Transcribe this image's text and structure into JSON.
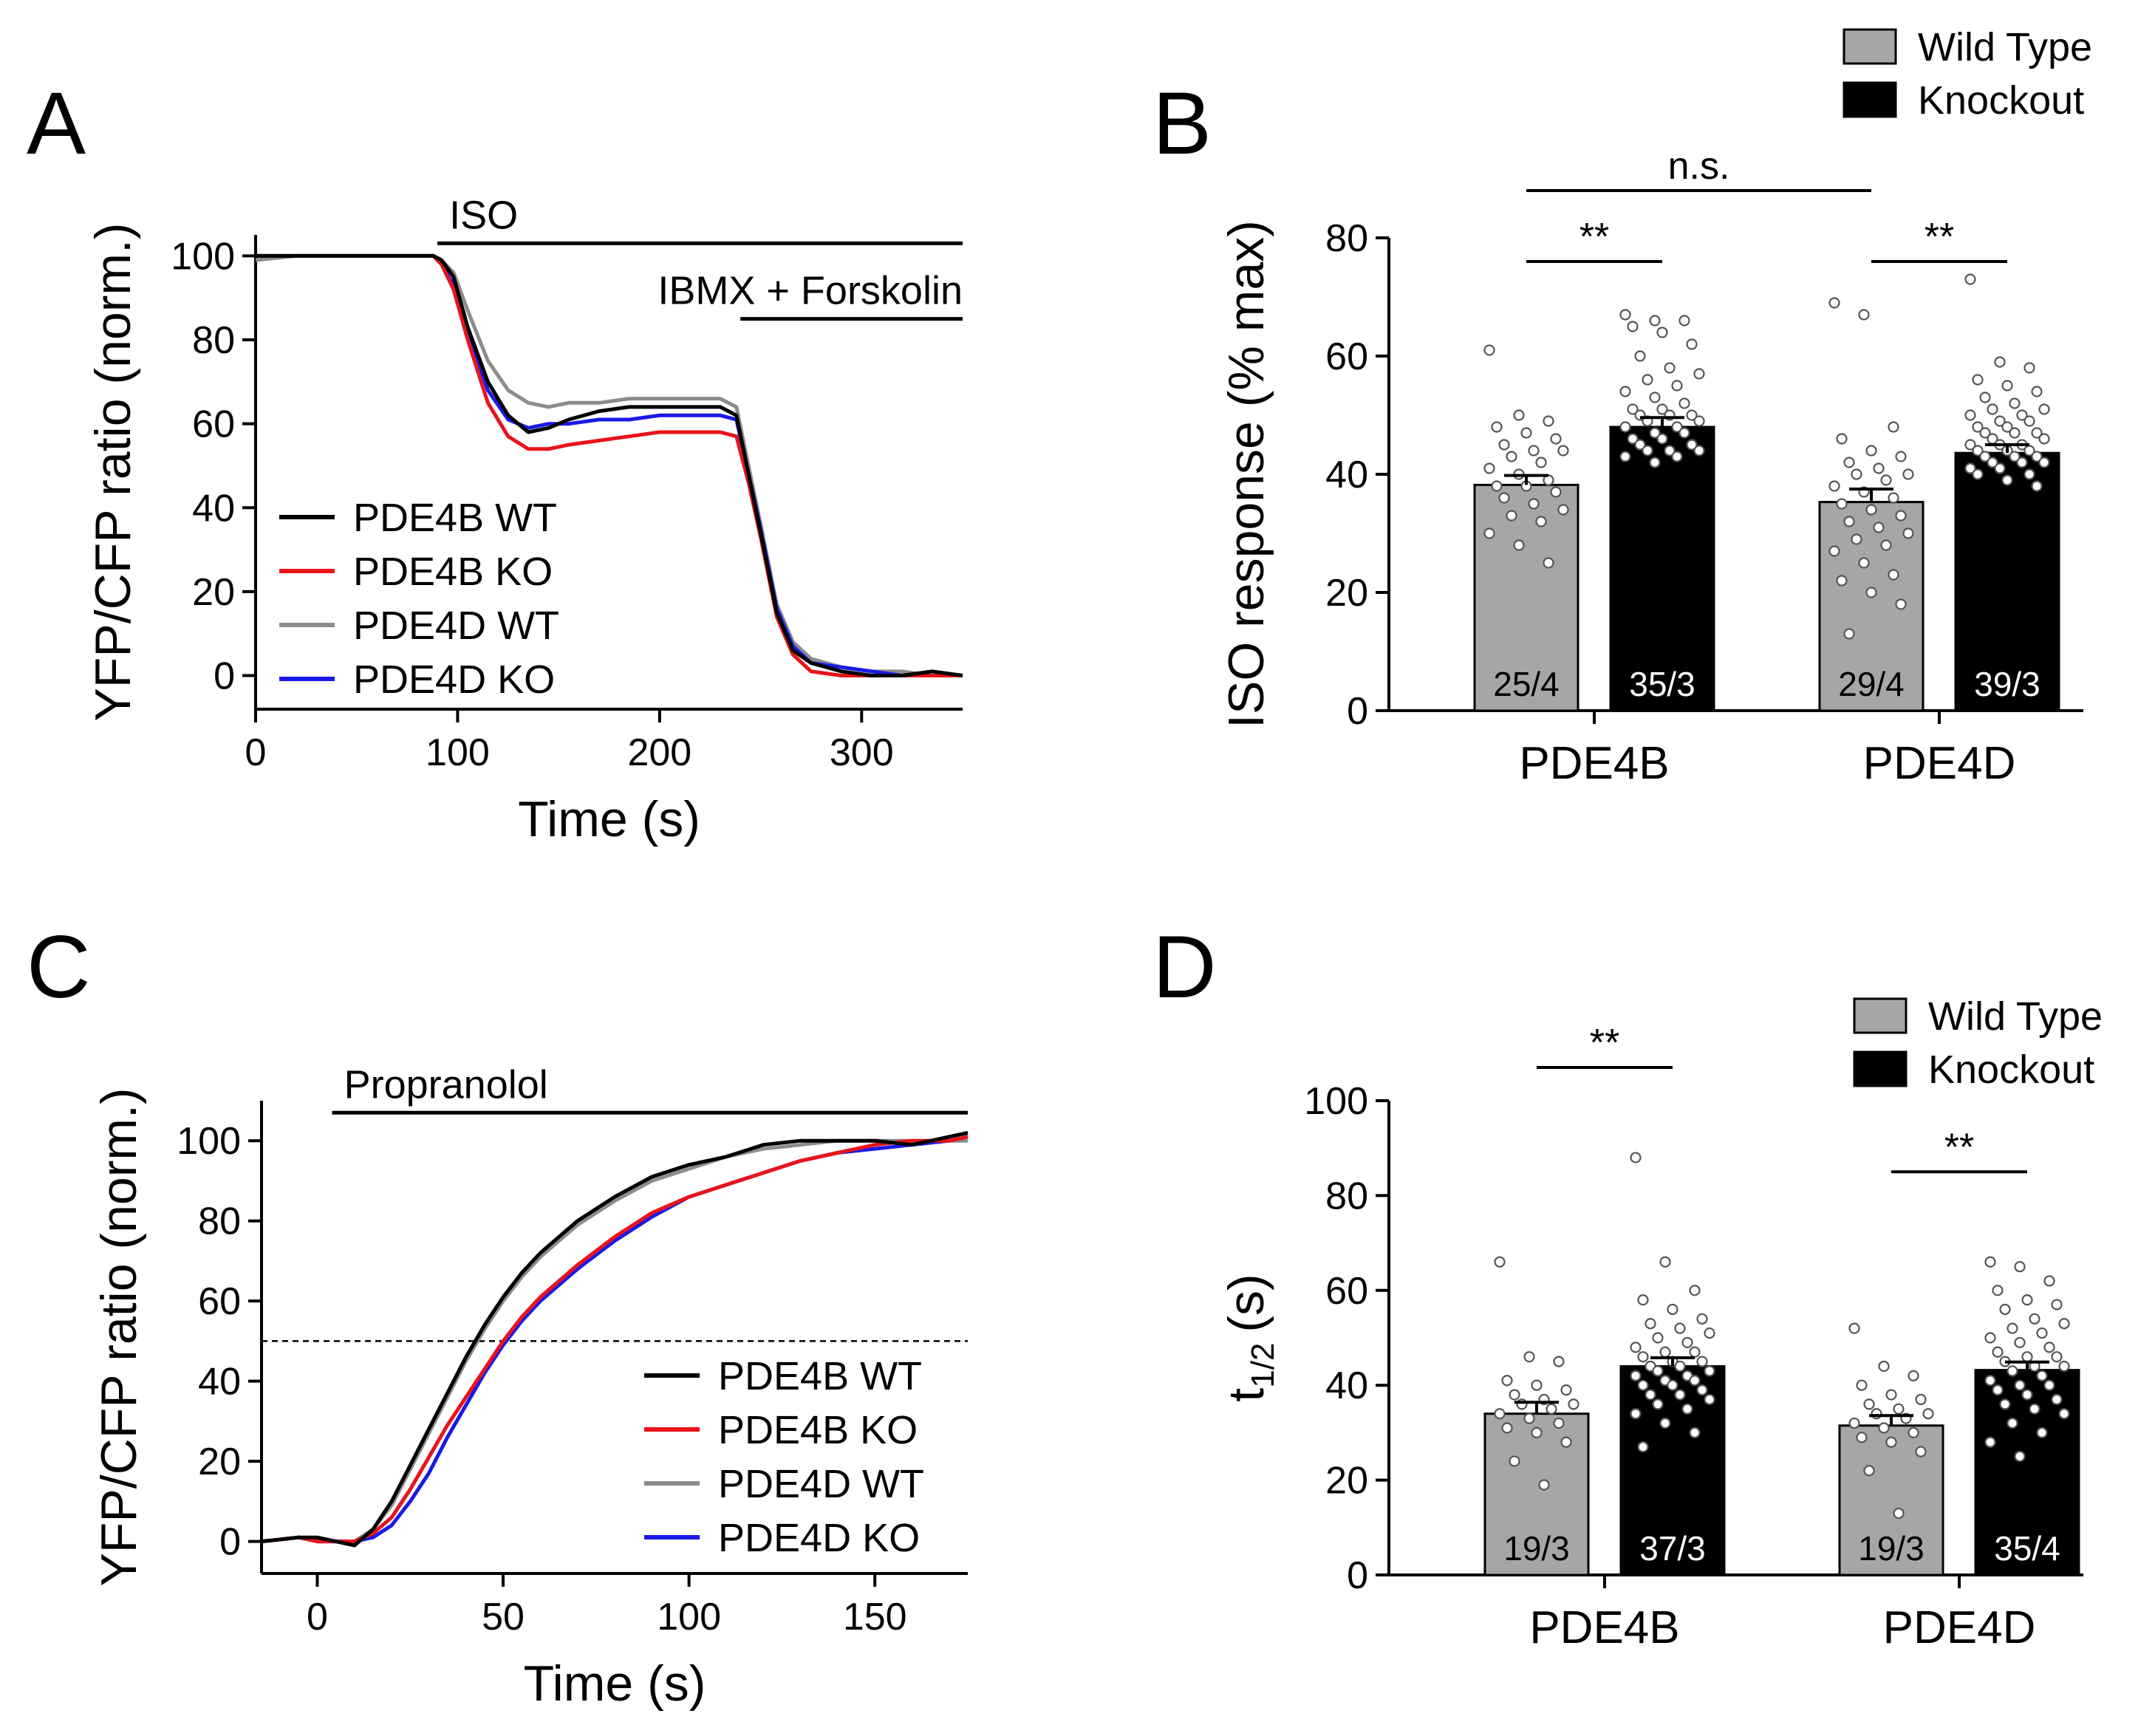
{
  "colors": {
    "pde4b_wt": "#000000",
    "pde4b_ko": "#e8141b",
    "pde4d_wt": "#8c8c8c",
    "pde4d_ko": "#1a1ae8",
    "bar_wt": "#a6a6a6",
    "bar_ko": "#000000"
  },
  "chart_data": [
    {
      "type": "line",
      "panel": "A",
      "ylabel": "YFP/CFP ratio (norm.)",
      "xlabel": "Time (s)",
      "xlim": [
        0,
        350
      ],
      "ylim": [
        -8,
        105
      ],
      "xticks": [
        "0",
        "100",
        "200",
        "300"
      ],
      "xtick_values": [
        0,
        100,
        200,
        300
      ],
      "yticks": [
        "0",
        "20",
        "40",
        "60",
        "80",
        "100"
      ],
      "ytick_values": [
        0,
        20,
        40,
        60,
        80,
        100
      ],
      "annotations": [
        {
          "label": "ISO",
          "x_start": 90,
          "x_end": 350,
          "y": 103
        },
        {
          "label": "IBMX + Forskolin",
          "x_start": 240,
          "x_end": 350,
          "y": 85
        }
      ],
      "series": [
        {
          "name": "PDE4B WT",
          "x": [
            0,
            20,
            40,
            60,
            80,
            88,
            92,
            98,
            105,
            115,
            125,
            135,
            145,
            155,
            170,
            185,
            200,
            215,
            230,
            238,
            244,
            250,
            258,
            266,
            275,
            290,
            305,
            320,
            335,
            350
          ],
          "values": [
            100,
            100,
            100,
            100,
            100,
            100,
            99,
            95,
            83,
            70,
            62,
            58,
            59,
            61,
            63,
            64,
            64,
            64,
            64,
            62,
            48,
            34,
            15,
            6,
            3,
            1,
            0,
            0,
            1,
            0
          ]
        },
        {
          "name": "PDE4B KO",
          "x": [
            0,
            20,
            40,
            60,
            80,
            88,
            92,
            98,
            105,
            115,
            125,
            135,
            145,
            155,
            170,
            185,
            200,
            215,
            230,
            238,
            244,
            250,
            258,
            266,
            275,
            290,
            305,
            320,
            335,
            350
          ],
          "values": [
            100,
            100,
            100,
            100,
            100,
            100,
            98,
            92,
            80,
            65,
            57,
            54,
            54,
            55,
            56,
            57,
            58,
            58,
            58,
            57,
            46,
            33,
            14,
            5,
            1,
            0,
            0,
            0,
            0,
            0
          ]
        },
        {
          "name": "PDE4D WT",
          "x": [
            0,
            20,
            40,
            60,
            80,
            88,
            92,
            98,
            105,
            115,
            125,
            135,
            145,
            155,
            170,
            185,
            200,
            215,
            230,
            238,
            244,
            250,
            258,
            266,
            275,
            290,
            305,
            320,
            335,
            350
          ],
          "values": [
            99,
            100,
            100,
            100,
            100,
            100,
            99,
            96,
            87,
            75,
            68,
            65,
            64,
            65,
            65,
            66,
            66,
            66,
            66,
            64,
            50,
            36,
            17,
            8,
            4,
            2,
            1,
            1,
            0,
            0
          ]
        },
        {
          "name": "PDE4D KO",
          "x": [
            0,
            20,
            40,
            60,
            80,
            88,
            92,
            98,
            105,
            115,
            125,
            135,
            145,
            155,
            170,
            185,
            200,
            215,
            230,
            238,
            244,
            250,
            258,
            266,
            275,
            290,
            305,
            320,
            335,
            350
          ],
          "values": [
            100,
            100,
            100,
            100,
            100,
            100,
            98,
            93,
            82,
            68,
            61,
            59,
            60,
            60,
            61,
            61,
            62,
            62,
            62,
            61,
            48,
            35,
            16,
            7,
            3,
            2,
            1,
            0,
            0,
            0
          ]
        }
      ]
    },
    {
      "type": "bar",
      "panel": "B",
      "ylabel": "ISO response (% max)",
      "categories": [
        "PDE4B",
        "PDE4D"
      ],
      "ylim": [
        0,
        80
      ],
      "yticks": [
        "0",
        "20",
        "40",
        "60",
        "80"
      ],
      "ytick_values": [
        0,
        20,
        40,
        60,
        80
      ],
      "legend": {
        "position": "top-right",
        "entries": [
          "Wild Type",
          "Knockout"
        ]
      },
      "series": [
        {
          "name": "Wild Type",
          "values": [
            38.2,
            35.3
          ],
          "sem": [
            1.6,
            2.2
          ],
          "n_labels": [
            "25/4",
            "29/4"
          ]
        },
        {
          "name": "Knockout",
          "values": [
            48.0,
            43.6
          ],
          "sem": [
            1.6,
            1.4
          ],
          "n_labels": [
            "35/3",
            "39/3"
          ]
        }
      ],
      "points": [
        [
          61,
          50,
          49,
          48,
          47,
          46,
          45,
          44,
          44,
          43,
          42,
          41,
          40,
          39,
          38,
          38,
          37,
          36,
          35,
          34,
          33,
          32,
          30,
          28,
          25
        ],
        [
          67,
          66,
          66,
          65,
          64,
          62,
          60,
          58,
          57,
          56,
          55,
          54,
          53,
          52,
          51,
          51,
          50,
          50,
          50,
          49,
          49,
          48,
          48,
          47,
          47,
          46,
          46,
          45,
          45,
          44,
          44,
          44,
          43,
          43,
          42
        ],
        [
          69,
          67,
          48,
          46,
          44,
          43,
          42,
          41,
          40,
          40,
          39,
          38,
          37,
          36,
          35,
          34,
          33,
          32,
          31,
          30,
          29,
          28,
          27,
          25,
          23,
          22,
          20,
          18,
          13
        ],
        [
          73,
          59,
          58,
          56,
          55,
          54,
          53,
          52,
          51,
          51,
          50,
          50,
          49,
          49,
          48,
          48,
          47,
          47,
          47,
          46,
          46,
          45,
          45,
          45,
          44,
          44,
          44,
          43,
          43,
          43,
          42,
          42,
          42,
          41,
          41,
          40,
          40,
          39,
          38
        ]
      ],
      "significance": [
        {
          "label": "**",
          "between": "PDE4B WT vs KO",
          "y": 76
        },
        {
          "label": "**",
          "between": "PDE4D WT vs KO",
          "y": 76
        },
        {
          "label": "n.s.",
          "between": "PDE4B WT vs PDE4D WT",
          "y": 88
        }
      ]
    },
    {
      "type": "line",
      "panel": "C",
      "ylabel": "YFP/CFP ratio (norm.)",
      "xlabel": "Time (s)",
      "xlim": [
        -15,
        175
      ],
      "ylim": [
        -8,
        110
      ],
      "xticks": [
        "0",
        "50",
        "100",
        "150"
      ],
      "xtick_values": [
        0,
        50,
        100,
        150
      ],
      "yticks": [
        "0",
        "20",
        "40",
        "60",
        "80",
        "100"
      ],
      "ytick_values": [
        0,
        20,
        40,
        60,
        80,
        100
      ],
      "reference_line_y": 50,
      "annotations": [
        {
          "label": "Propranolol",
          "x_start": 4,
          "x_end": 175,
          "y": 107
        }
      ],
      "series": [
        {
          "name": "PDE4B WT",
          "x": [
            -15,
            -5,
            0,
            5,
            10,
            15,
            20,
            25,
            30,
            35,
            40,
            45,
            50,
            55,
            60,
            70,
            80,
            90,
            100,
            110,
            120,
            130,
            140,
            150,
            160,
            170,
            175
          ],
          "values": [
            0,
            1,
            1,
            0,
            -1,
            3,
            10,
            19,
            28,
            37,
            46,
            54,
            61,
            67,
            72,
            80,
            86,
            91,
            94,
            96,
            99,
            100,
            100,
            100,
            99,
            101,
            102
          ]
        },
        {
          "name": "PDE4B KO",
          "x": [
            -15,
            -5,
            0,
            5,
            10,
            15,
            20,
            25,
            30,
            35,
            40,
            45,
            50,
            55,
            60,
            70,
            80,
            90,
            100,
            110,
            120,
            130,
            140,
            150,
            160,
            170,
            175
          ],
          "values": [
            0,
            1,
            0,
            0,
            0,
            2,
            6,
            13,
            21,
            29,
            36,
            43,
            50,
            56,
            61,
            69,
            76,
            82,
            86,
            89,
            92,
            95,
            97,
            99,
            100,
            100,
            101
          ]
        },
        {
          "name": "PDE4D WT",
          "x": [
            -15,
            -5,
            0,
            5,
            10,
            15,
            20,
            25,
            30,
            35,
            40,
            45,
            50,
            55,
            60,
            70,
            80,
            90,
            100,
            110,
            120,
            130,
            140,
            150,
            160,
            170,
            175
          ],
          "values": [
            0,
            1,
            0,
            0,
            0,
            3,
            9,
            18,
            27,
            36,
            45,
            53,
            60,
            66,
            71,
            79,
            85,
            90,
            93,
            96,
            98,
            99,
            100,
            100,
            100,
            100,
            100
          ]
        },
        {
          "name": "PDE4D KO",
          "x": [
            -15,
            -5,
            0,
            5,
            10,
            15,
            20,
            25,
            30,
            35,
            40,
            45,
            50,
            55,
            60,
            70,
            80,
            90,
            100,
            110,
            120,
            130,
            140,
            150,
            160,
            170,
            175
          ],
          "values": [
            0,
            1,
            0,
            0,
            0,
            1,
            4,
            10,
            17,
            26,
            34,
            42,
            49,
            55,
            60,
            68,
            75,
            81,
            86,
            89,
            92,
            95,
            97,
            98,
            99,
            100,
            101
          ]
        }
      ]
    },
    {
      "type": "bar",
      "panel": "D",
      "ylabel": "t 1/2 (s)",
      "ylabel_main": "t",
      "ylabel_sub": "1/2",
      "ylabel_unit": "(s)",
      "categories": [
        "PDE4B",
        "PDE4D"
      ],
      "ylim": [
        0,
        100
      ],
      "yticks": [
        "0",
        "20",
        "40",
        "60",
        "80",
        "100"
      ],
      "ytick_values": [
        0,
        20,
        40,
        60,
        80,
        100
      ],
      "legend": {
        "position": "top-right",
        "entries": [
          "Wild Type",
          "Knockout"
        ]
      },
      "series": [
        {
          "name": "Wild Type",
          "values": [
            34.0,
            31.5
          ],
          "sem": [
            2.4,
            2.1
          ],
          "n_labels": [
            "19/3",
            "19/3"
          ]
        },
        {
          "name": "Knockout",
          "values": [
            44.0,
            43.2
          ],
          "sem": [
            1.8,
            1.7
          ],
          "n_labels": [
            "37/3",
            "35/4"
          ]
        }
      ],
      "points": [
        [
          66,
          46,
          45,
          41,
          40,
          39,
          38,
          37,
          36,
          36,
          35,
          34,
          33,
          32,
          31,
          30,
          28,
          24,
          19
        ],
        [
          88,
          66,
          60,
          58,
          56,
          54,
          53,
          52,
          51,
          50,
          49,
          48,
          47,
          47,
          46,
          45,
          45,
          44,
          44,
          43,
          43,
          42,
          42,
          41,
          41,
          40,
          40,
          39,
          38,
          38,
          37,
          36,
          35,
          34,
          32,
          30,
          27
        ],
        [
          52,
          44,
          42,
          40,
          38,
          37,
          36,
          35,
          34,
          34,
          33,
          32,
          31,
          30,
          29,
          28,
          26,
          22,
          13
        ],
        [
          66,
          65,
          62,
          60,
          58,
          57,
          56,
          54,
          53,
          52,
          51,
          50,
          49,
          48,
          47,
          46,
          46,
          45,
          44,
          44,
          43,
          42,
          41,
          40,
          40,
          39,
          38,
          37,
          36,
          35,
          34,
          32,
          30,
          28,
          25
        ]
      ],
      "significance": [
        {
          "label": "**",
          "between": "PDE4B WT vs KO",
          "y": 107
        },
        {
          "label": "**",
          "between": "PDE4D WT vs KO",
          "y": 85
        }
      ]
    }
  ],
  "panels": {
    "a": "A",
    "b": "B",
    "c": "C",
    "d": "D"
  }
}
